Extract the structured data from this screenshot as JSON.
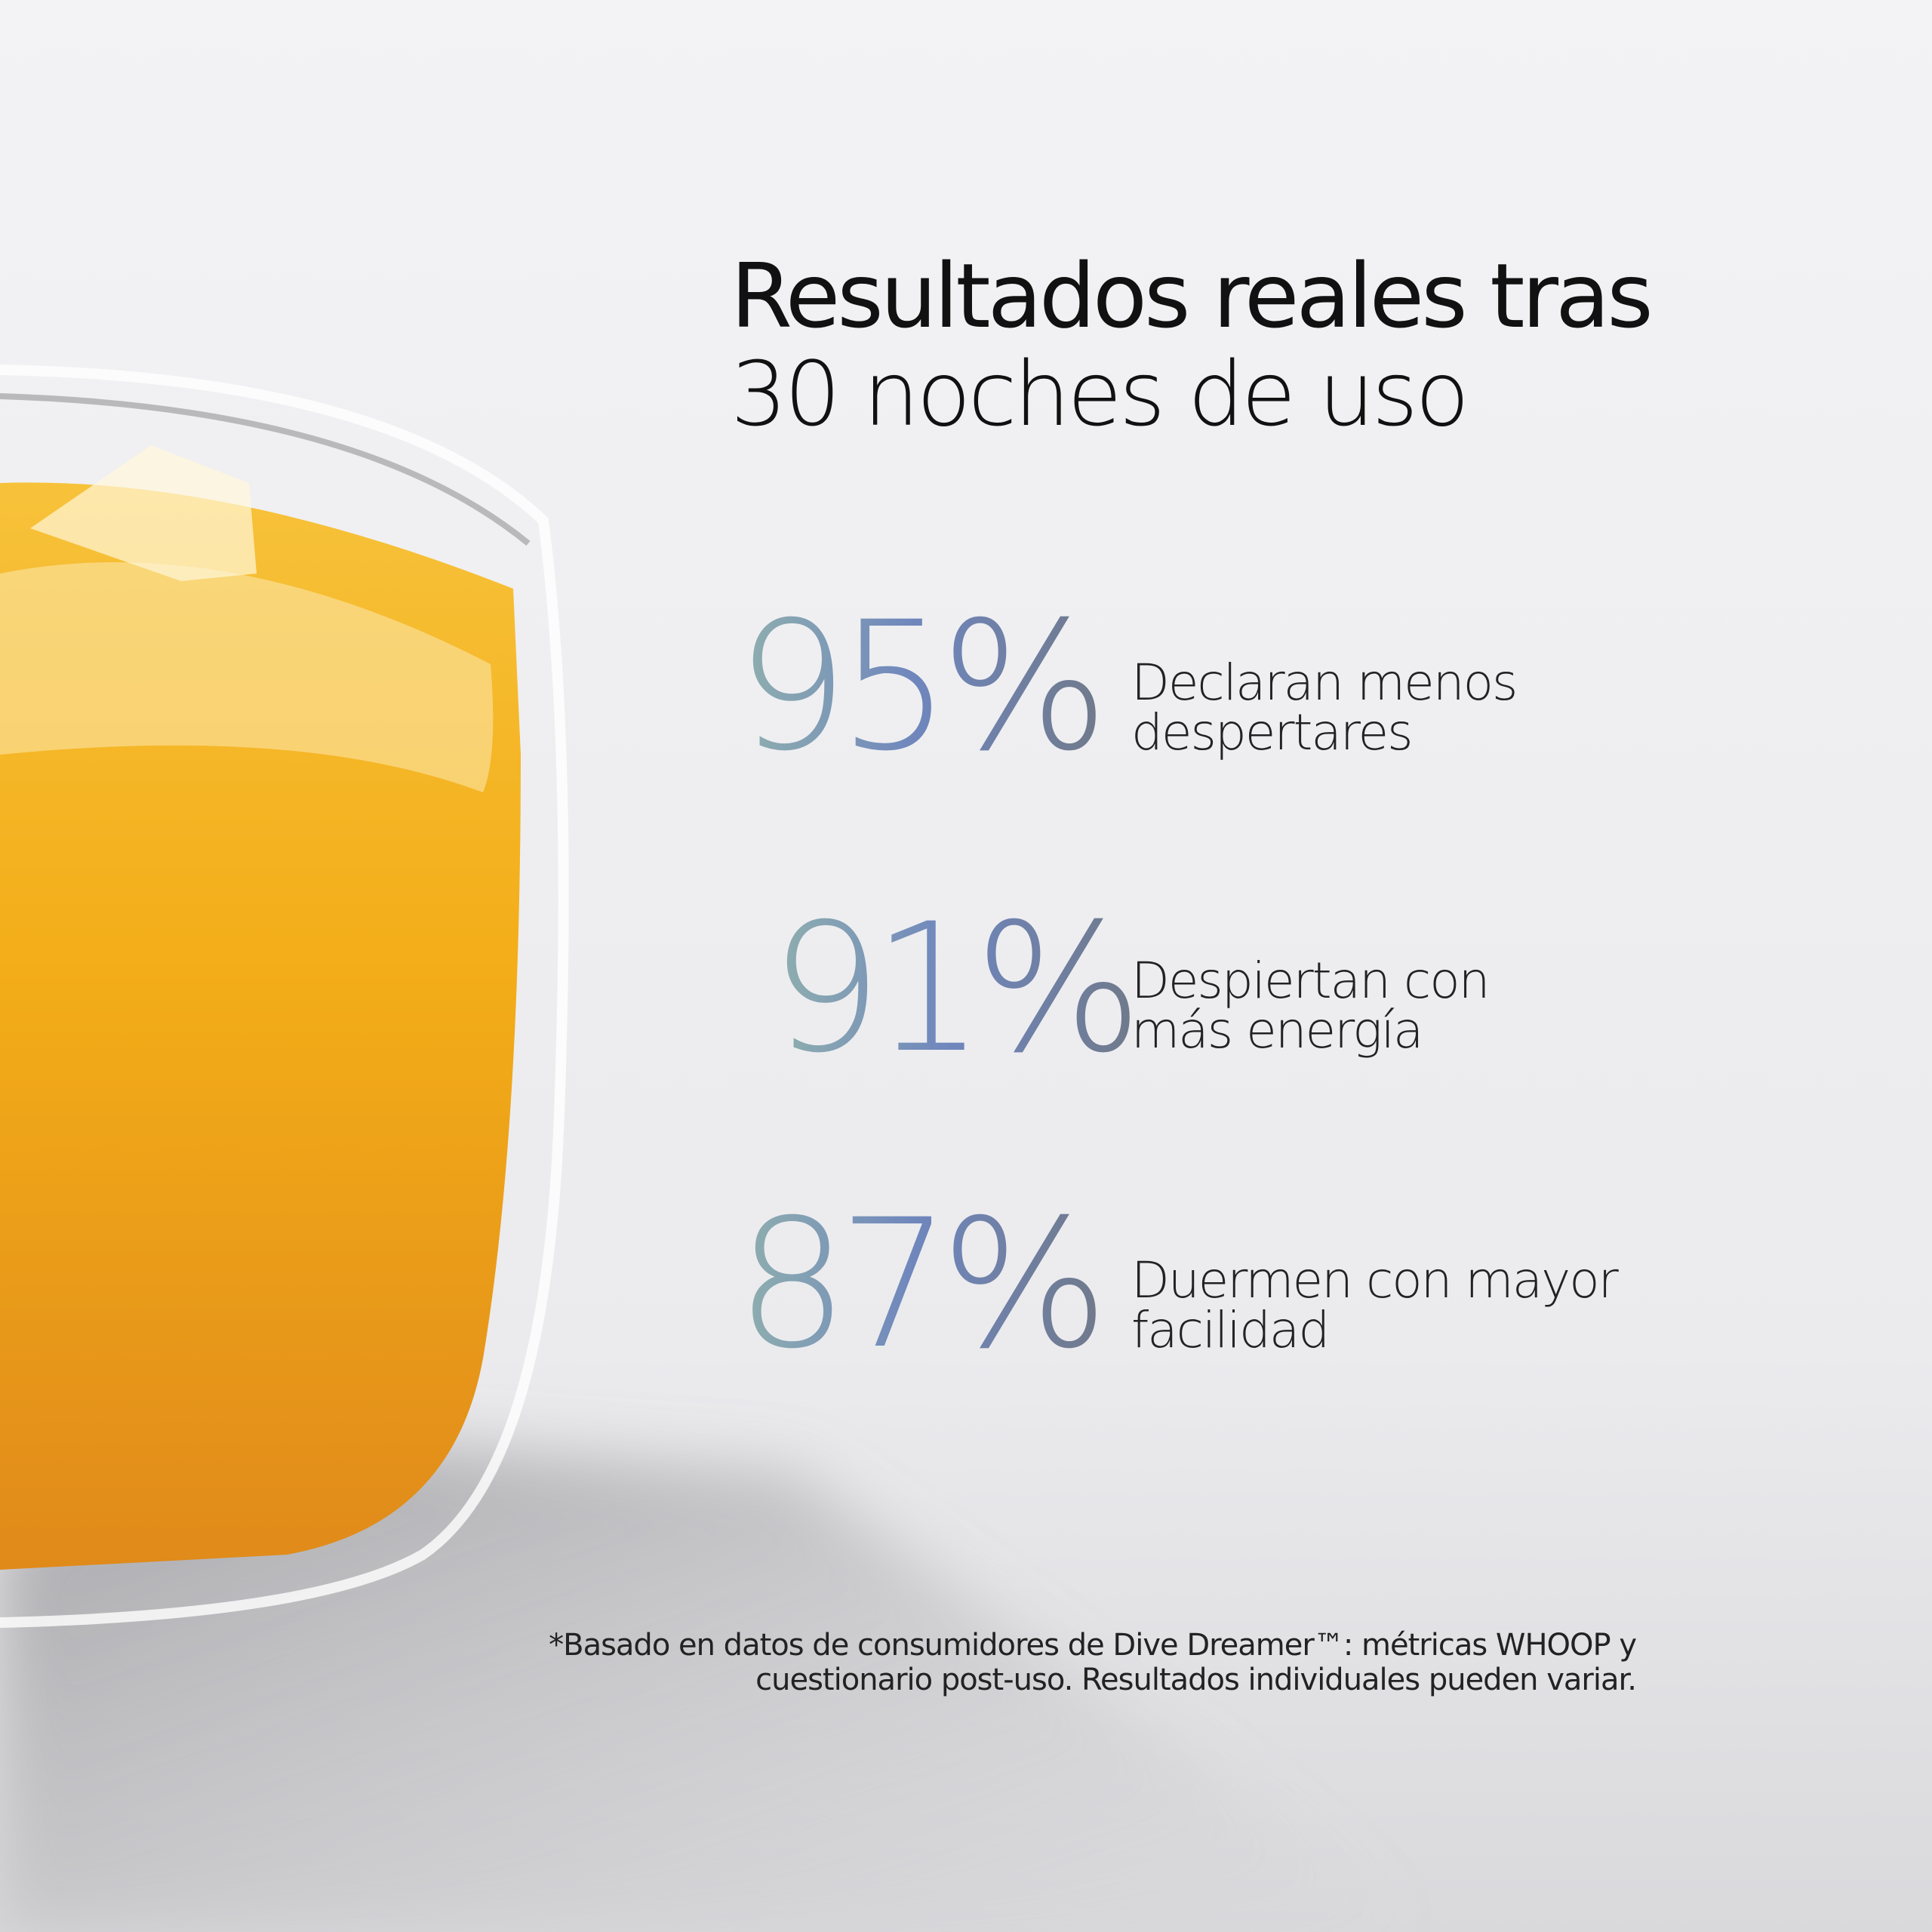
{
  "header": {
    "title_lines": [
      "Resultados reales tras",
      "30 noches de uso"
    ]
  },
  "stats": [
    {
      "value": "95%",
      "label_lines": [
        "Declaran menos",
        "despertares"
      ]
    },
    {
      "value": "91%",
      "label_lines": [
        "Despiertan con",
        "más energía"
      ]
    },
    {
      "value": "87%",
      "label_lines": [
        "Duermen con mayor",
        "facilidad"
      ]
    }
  ],
  "footnote": {
    "lines": [
      "*Basado en datos de consumidores de Dive Dreamer™: métricas WHOOP y",
      "cuestionario post-uso. Resultados individuales pueden variar."
    ]
  }
}
